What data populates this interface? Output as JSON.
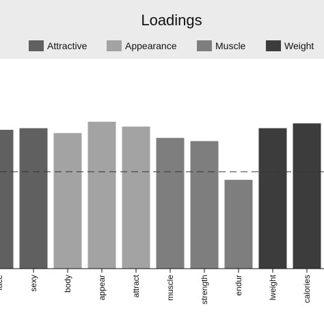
{
  "chart_data": {
    "type": "bar",
    "legend_title": "Loadings",
    "legend_position": "top",
    "categories": [
      "face",
      "sexy",
      "body",
      "appear",
      "attract",
      "muscle",
      "strength",
      "endur",
      "lweight",
      "calories"
    ],
    "values": [
      0.86,
      0.87,
      0.84,
      0.91,
      0.88,
      0.81,
      0.79,
      0.55,
      0.87,
      0.9
    ],
    "groups": [
      "Attractive",
      "Attractive",
      "Appearance",
      "Appearance",
      "Appearance",
      "Muscle",
      "Muscle",
      "Muscle",
      "Weight",
      "Weight"
    ],
    "reference_line": 0.6,
    "ylim": [
      0,
      1.3
    ],
    "legend": [
      {
        "name": "Attractive",
        "color": "#606060"
      },
      {
        "name": "Appearance",
        "color": "#a3a3a3"
      },
      {
        "name": "Muscle",
        "color": "#7e7e7e"
      },
      {
        "name": "Weight",
        "color": "#3c3c3c"
      }
    ],
    "grid": false
  }
}
